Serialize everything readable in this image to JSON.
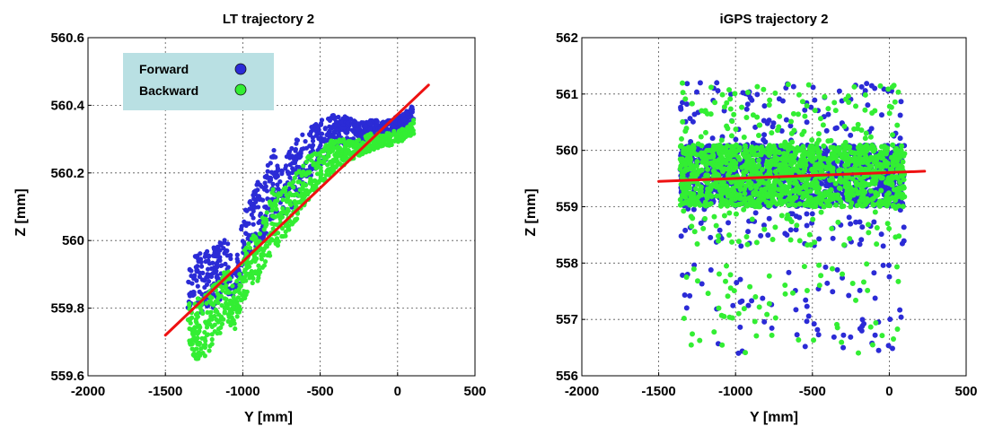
{
  "chart_data": [
    {
      "type": "scatter",
      "title": "LT trajectory 2",
      "xlabel": "Y [mm]",
      "ylabel": "Z [mm]",
      "xlim": [
        -2000,
        500
      ],
      "ylim": [
        559.6,
        560.6
      ],
      "x_ticks": [
        "-2000",
        "-1500",
        "-1000",
        "-500",
        "0",
        "500"
      ],
      "y_ticks": [
        "559.6",
        "559.8",
        "560",
        "560.2",
        "560.4",
        "560.6"
      ],
      "grid": true,
      "legend_position": "top-left",
      "legend": [
        {
          "label": "Forward",
          "color": "#2b2bd6"
        },
        {
          "label": "Backward",
          "color": "#33ee33"
        }
      ],
      "fit_line": {
        "color": "#ee1111",
        "points": [
          [
            -1500,
            559.72
          ],
          [
            200,
            560.46
          ]
        ]
      },
      "series": [
        {
          "name": "Forward",
          "color": "#2b2bd6",
          "y": [
            -1350,
            -1300,
            -1250,
            -1200,
            -1150,
            -1100,
            -1050,
            -1000,
            -950,
            -900,
            -850,
            -800,
            -750,
            -700,
            -650,
            -600,
            -550,
            -500,
            -450,
            -400,
            -350,
            -300,
            -250,
            -200,
            -150,
            -100,
            -50,
            0,
            50,
            100
          ],
          "z_upper": [
            559.95,
            559.96,
            559.97,
            559.99,
            560.0,
            560.01,
            559.9,
            560.08,
            560.12,
            560.18,
            560.2,
            560.28,
            560.22,
            560.27,
            560.3,
            560.32,
            560.34,
            560.36,
            560.37,
            560.38,
            560.37,
            560.36,
            560.35,
            560.35,
            560.36,
            560.35,
            560.36,
            560.37,
            560.38,
            560.41
          ],
          "z_lower": [
            559.8,
            559.78,
            559.79,
            559.8,
            559.82,
            559.85,
            559.82,
            559.92,
            559.95,
            559.97,
            560.02,
            560.07,
            560.06,
            560.08,
            560.13,
            560.16,
            560.2,
            560.22,
            560.25,
            560.27,
            560.28,
            560.29,
            560.29,
            560.3,
            560.31,
            560.31,
            560.32,
            560.32,
            560.33,
            560.35
          ]
        },
        {
          "name": "Backward",
          "color": "#33ee33",
          "y": [
            -1350,
            -1300,
            -1250,
            -1200,
            -1150,
            -1100,
            -1050,
            -1000,
            -950,
            -900,
            -850,
            -800,
            -750,
            -700,
            -650,
            -600,
            -550,
            -500,
            -450,
            -400,
            -350,
            -300,
            -250,
            -200,
            -150,
            -100,
            -50,
            0,
            50,
            100
          ],
          "z_upper": [
            559.82,
            559.83,
            559.84,
            559.86,
            559.9,
            559.92,
            559.84,
            559.97,
            560.0,
            560.05,
            560.1,
            560.16,
            560.14,
            560.17,
            560.22,
            560.24,
            560.26,
            560.27,
            560.29,
            560.3,
            560.3,
            560.3,
            560.3,
            560.31,
            560.32,
            560.31,
            560.32,
            560.33,
            560.33,
            560.36
          ],
          "z_lower": [
            559.66,
            559.65,
            559.64,
            559.68,
            559.72,
            559.75,
            559.73,
            559.82,
            559.85,
            559.88,
            559.92,
            559.98,
            559.99,
            560.02,
            560.06,
            560.1,
            560.14,
            560.16,
            560.19,
            560.21,
            560.22,
            560.24,
            560.25,
            560.26,
            560.27,
            560.28,
            560.28,
            560.29,
            560.3,
            560.31
          ]
        }
      ]
    },
    {
      "type": "scatter",
      "title": "iGPS trajectory 2",
      "xlabel": "Y [mm]",
      "ylabel": "Z [mm]",
      "xlim": [
        -2000,
        500
      ],
      "ylim": [
        556,
        562
      ],
      "x_ticks": [
        "-2000",
        "-1500",
        "-1000",
        "-500",
        "0",
        "500"
      ],
      "y_ticks": [
        "556",
        "557",
        "558",
        "559",
        "560",
        "561",
        "562"
      ],
      "grid": true,
      "fit_line": {
        "color": "#ee1111",
        "points": [
          [
            -1500,
            559.45
          ],
          [
            230,
            559.63
          ]
        ]
      },
      "series": [
        {
          "name": "Forward",
          "color": "#2b2bd6",
          "y_range": [
            -1360,
            100
          ],
          "core_z": [
            559.0,
            560.1
          ],
          "spread_z": [
            556.4,
            561.2
          ]
        },
        {
          "name": "Backward",
          "color": "#33ee33",
          "y_range": [
            -1360,
            100
          ],
          "core_z": [
            559.0,
            560.1
          ],
          "spread_z": [
            556.4,
            561.2
          ]
        }
      ]
    }
  ]
}
